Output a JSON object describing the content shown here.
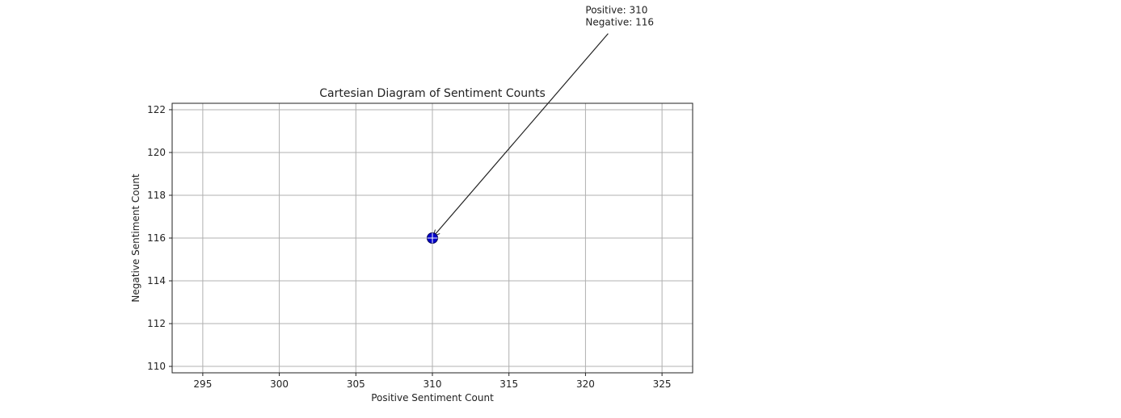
{
  "chart_data": {
    "type": "scatter",
    "title": "Cartesian Diagram of Sentiment Counts",
    "xlabel": "Positive Sentiment Count",
    "ylabel": "Negative Sentiment Count",
    "xlim": [
      293,
      327
    ],
    "ylim": [
      109.7,
      122.3
    ],
    "xticks": [
      295,
      300,
      305,
      310,
      315,
      320,
      325
    ],
    "yticks": [
      110,
      112,
      114,
      116,
      118,
      120,
      122
    ],
    "xtick_labels": [
      "295",
      "300",
      "305",
      "310",
      "315",
      "320",
      "325"
    ],
    "ytick_labels": [
      "110",
      "112",
      "114",
      "116",
      "118",
      "120",
      "122"
    ],
    "grid": true,
    "series": [
      {
        "points": [
          {
            "x": 310,
            "y": 116
          }
        ],
        "color": "#0000cc"
      }
    ],
    "annotations": [
      {
        "lines": [
          "Positive: 310",
          "Negative: 116"
        ],
        "points_to": {
          "x": 310,
          "y": 116
        },
        "text_at": {
          "x": 320,
          "y": 126.5
        }
      }
    ]
  },
  "colors": {
    "grid": "#b0b0b0",
    "axes": "#222222",
    "marker_fill": "#0000cc",
    "marker_cross": "#ffffff"
  }
}
